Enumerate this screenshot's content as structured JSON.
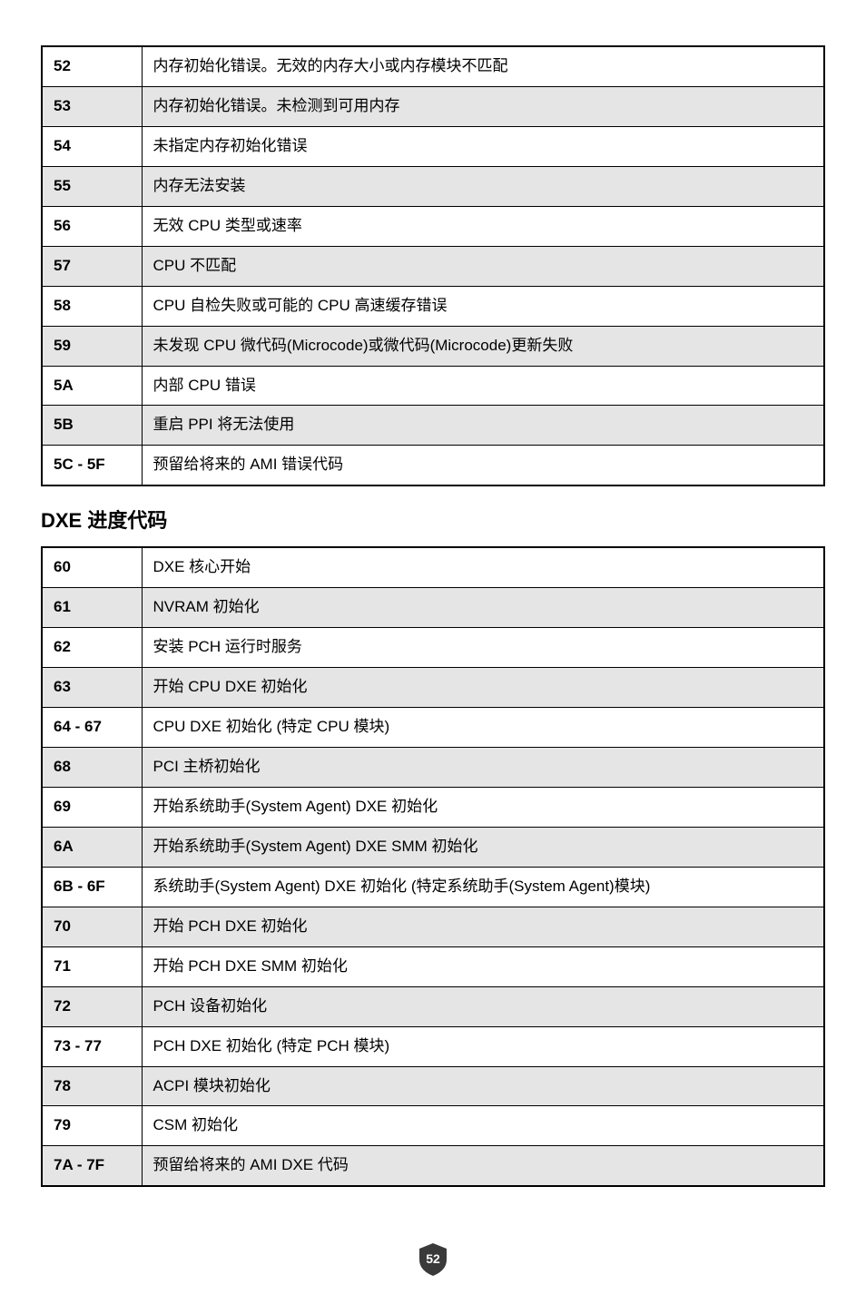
{
  "table1": {
    "rows": [
      {
        "code": "52",
        "desc": "内存初始化错误。无效的内存大小或内存模块不匹配",
        "shaded": false
      },
      {
        "code": "53",
        "desc": "内存初始化错误。未检测到可用内存",
        "shaded": true
      },
      {
        "code": "54",
        "desc": "未指定内存初始化错误",
        "shaded": false
      },
      {
        "code": "55",
        "desc": "内存无法安装",
        "shaded": true
      },
      {
        "code": "56",
        "desc": "无效 CPU 类型或速率",
        "shaded": false
      },
      {
        "code": "57",
        "desc": "CPU 不匹配",
        "shaded": true
      },
      {
        "code": "58",
        "desc": "CPU 自检失败或可能的 CPU 高速缓存错误",
        "shaded": false
      },
      {
        "code": "59",
        "desc": "未发现 CPU 微代码(Microcode)或微代码(Microcode)更新失败",
        "shaded": true
      },
      {
        "code": "5A",
        "desc": "内部 CPU 错误",
        "shaded": false
      },
      {
        "code": "5B",
        "desc": "重启 PPI 将无法使用",
        "shaded": true
      },
      {
        "code": "5C - 5F",
        "desc": "预留给将来的 AMI 错误代码",
        "shaded": false
      }
    ]
  },
  "heading": "DXE 进度代码",
  "table2": {
    "rows": [
      {
        "code": "60",
        "desc": "DXE 核心开始",
        "shaded": false
      },
      {
        "code": "61",
        "desc": "NVRAM 初始化",
        "shaded": true
      },
      {
        "code": "62",
        "desc": "安装 PCH 运行时服务",
        "shaded": false
      },
      {
        "code": "63",
        "desc": "开始 CPU DXE 初始化",
        "shaded": true
      },
      {
        "code": "64 - 67",
        "desc": "CPU DXE 初始化 (特定 CPU 模块)",
        "shaded": false
      },
      {
        "code": "68",
        "desc": "PCI 主桥初始化",
        "shaded": true
      },
      {
        "code": "69",
        "desc": "开始系统助手(System Agent) DXE 初始化",
        "shaded": false
      },
      {
        "code": "6A",
        "desc": "开始系统助手(System Agent) DXE SMM 初始化",
        "shaded": true
      },
      {
        "code": "6B - 6F",
        "desc": "系统助手(System Agent) DXE 初始化 (特定系统助手(System Agent)模块)",
        "shaded": false
      },
      {
        "code": "70",
        "desc": "开始 PCH DXE 初始化",
        "shaded": true
      },
      {
        "code": "71",
        "desc": "开始 PCH DXE SMM 初始化",
        "shaded": false
      },
      {
        "code": "72",
        "desc": "PCH 设备初始化",
        "shaded": true
      },
      {
        "code": "73 - 77",
        "desc": "PCH DXE 初始化 (特定 PCH 模块)",
        "shaded": false
      },
      {
        "code": "78",
        "desc": "ACPI 模块初始化",
        "shaded": true
      },
      {
        "code": "79",
        "desc": "CSM 初始化",
        "shaded": false
      },
      {
        "code": "7A - 7F",
        "desc": "预留给将来的 AMI DXE 代码",
        "shaded": true
      }
    ]
  },
  "pageNumber": "52",
  "colors": {
    "shaded": "#e5e5e5",
    "border": "#000000",
    "text": "#000000",
    "background": "#ffffff",
    "badge": "#3a3a3a",
    "badgeText": "#ffffff"
  }
}
